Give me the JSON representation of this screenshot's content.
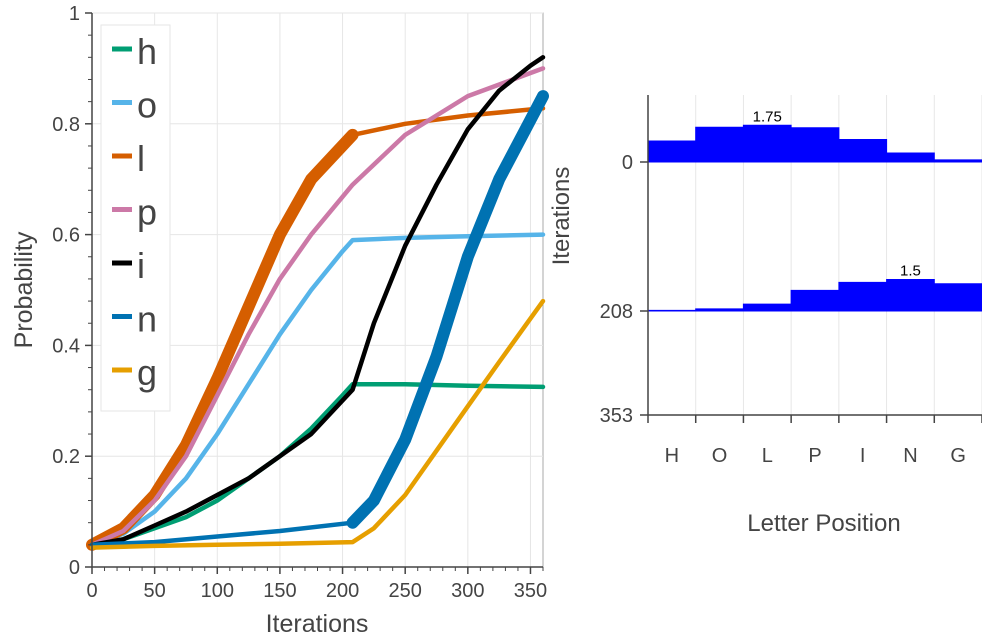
{
  "chart_data": [
    {
      "type": "line",
      "xlabel": "Iterations",
      "ylabel": "Probability",
      "xlim": [
        0,
        360
      ],
      "ylim": [
        0,
        1
      ],
      "x_ticks": [
        "0",
        "50",
        "100",
        "150",
        "200",
        "250",
        "300",
        "350"
      ],
      "y_ticks": [
        "0",
        "0.2",
        "0.4",
        "0.6",
        "0.8",
        "1"
      ],
      "grid": true,
      "legend": "top-left",
      "series": [
        {
          "name": "h",
          "color": "#009e73",
          "points": [
            [
              0,
              0.04
            ],
            [
              25,
              0.05
            ],
            [
              50,
              0.07
            ],
            [
              75,
              0.09
            ],
            [
              100,
              0.12
            ],
            [
              125,
              0.16
            ],
            [
              150,
              0.2
            ],
            [
              175,
              0.25
            ],
            [
              200,
              0.31
            ],
            [
              208,
              0.33
            ],
            [
              250,
              0.33
            ],
            [
              300,
              0.327
            ],
            [
              360,
              0.325
            ]
          ]
        },
        {
          "name": "o",
          "color": "#56b4e9",
          "points": [
            [
              0,
              0.04
            ],
            [
              25,
              0.06
            ],
            [
              50,
              0.1
            ],
            [
              75,
              0.16
            ],
            [
              100,
              0.24
            ],
            [
              125,
              0.33
            ],
            [
              150,
              0.42
            ],
            [
              175,
              0.5
            ],
            [
              200,
              0.57
            ],
            [
              208,
              0.59
            ],
            [
              250,
              0.594
            ],
            [
              300,
              0.597
            ],
            [
              360,
              0.6
            ]
          ]
        },
        {
          "name": "l",
          "color": "#d55e00",
          "points": [
            [
              0,
              0.04
            ],
            [
              25,
              0.07
            ],
            [
              50,
              0.13
            ],
            [
              75,
              0.22
            ],
            [
              100,
              0.34
            ],
            [
              125,
              0.47
            ],
            [
              150,
              0.6
            ],
            [
              175,
              0.7
            ],
            [
              208,
              0.78
            ],
            [
              250,
              0.8
            ],
            [
              300,
              0.815
            ],
            [
              360,
              0.828
            ]
          ]
        },
        {
          "name": "p",
          "color": "#cc79a7",
          "points": [
            [
              0,
              0.04
            ],
            [
              25,
              0.065
            ],
            [
              50,
              0.12
            ],
            [
              75,
              0.2
            ],
            [
              100,
              0.31
            ],
            [
              125,
              0.42
            ],
            [
              150,
              0.52
            ],
            [
              175,
              0.6
            ],
            [
              208,
              0.69
            ],
            [
              250,
              0.78
            ],
            [
              300,
              0.85
            ],
            [
              360,
              0.9
            ]
          ]
        },
        {
          "name": "i",
          "color": "#000000",
          "points": [
            [
              0,
              0.04
            ],
            [
              25,
              0.05
            ],
            [
              50,
              0.075
            ],
            [
              75,
              0.1
            ],
            [
              100,
              0.13
            ],
            [
              125,
              0.16
            ],
            [
              150,
              0.2
            ],
            [
              175,
              0.24
            ],
            [
              208,
              0.32
            ],
            [
              225,
              0.44
            ],
            [
              250,
              0.58
            ],
            [
              275,
              0.69
            ],
            [
              300,
              0.79
            ],
            [
              325,
              0.86
            ],
            [
              350,
              0.905
            ],
            [
              360,
              0.92
            ]
          ]
        },
        {
          "name": "n",
          "color": "#0072b2",
          "points": [
            [
              0,
              0.04
            ],
            [
              50,
              0.045
            ],
            [
              100,
              0.055
            ],
            [
              150,
              0.065
            ],
            [
              208,
              0.08
            ],
            [
              225,
              0.12
            ],
            [
              250,
              0.23
            ],
            [
              275,
              0.38
            ],
            [
              300,
              0.56
            ],
            [
              325,
              0.7
            ],
            [
              360,
              0.85
            ]
          ]
        },
        {
          "name": "g",
          "color": "#e69f00",
          "points": [
            [
              0,
              0.035
            ],
            [
              50,
              0.038
            ],
            [
              100,
              0.04
            ],
            [
              150,
              0.042
            ],
            [
              208,
              0.045
            ],
            [
              225,
              0.07
            ],
            [
              250,
              0.13
            ],
            [
              275,
              0.21
            ],
            [
              300,
              0.29
            ],
            [
              325,
              0.37
            ],
            [
              360,
              0.48
            ]
          ]
        }
      ]
    },
    {
      "type": "area",
      "xlabel": "Letter Position",
      "ylabel": "Iterations",
      "categories": [
        "H",
        "O",
        "L",
        "P",
        "I",
        "N",
        "G"
      ],
      "y_ticks": [
        "0",
        "208",
        "353"
      ],
      "grid": true,
      "fill_color": "#0000ff",
      "ridges": [
        {
          "iteration": 0,
          "values": [
            1.0,
            1.65,
            1.75,
            1.63,
            1.07,
            0.43,
            0.1
          ],
          "peak_label": "1.75"
        },
        {
          "iteration": 208,
          "values": [
            0.03,
            0.1,
            0.33,
            0.98,
            1.36,
            1.5,
            1.3
          ],
          "peak_label": "1.5"
        }
      ]
    }
  ]
}
